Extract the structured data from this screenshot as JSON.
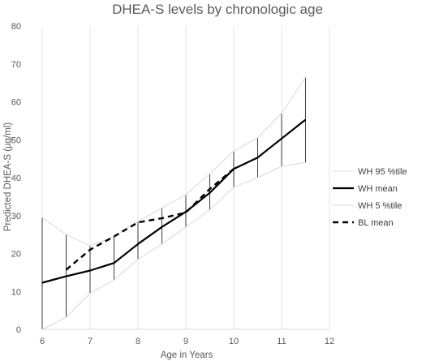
{
  "chart_data": {
    "type": "line",
    "title": "DHEA-S levels by chronologic age",
    "xlabel": "Age in Years",
    "ylabel": "Predicted DHEA-S (µg/ml)",
    "xlim": [
      6,
      12
    ],
    "ylim": [
      0,
      80
    ],
    "x_ticks": [
      "6",
      "7",
      "8",
      "9",
      "10",
      "11",
      "12"
    ],
    "y_ticks": [
      "0",
      "10",
      "20",
      "30",
      "40",
      "50",
      "60",
      "70",
      "80"
    ],
    "grid": "vertical",
    "legend_position": "right",
    "series": [
      {
        "name": "WH 95 %tile",
        "style": "thin-light",
        "color": "#d9d9d9",
        "x": [
          6,
          6.5,
          7,
          7.5,
          8,
          8.5,
          9,
          9.5,
          10,
          10.5,
          11,
          11.5
        ],
        "y": [
          29.5,
          25,
          22,
          24.5,
          28.5,
          32,
          35.5,
          41,
          47,
          50.5,
          57,
          66.5
        ]
      },
      {
        "name": "WH mean",
        "style": "solid-bold",
        "color": "#000000",
        "x": [
          6,
          6.5,
          7,
          7.5,
          8,
          8.5,
          9,
          9.5,
          10,
          10.5,
          11,
          11.5
        ],
        "y": [
          12.3,
          14,
          15.5,
          17.5,
          22.5,
          27,
          31,
          36,
          42.3,
          45.3,
          50.3,
          55.3
        ]
      },
      {
        "name": "WH 5 %tile",
        "style": "thin-light",
        "color": "#d9d9d9",
        "x": [
          6,
          6.5,
          7,
          7.5,
          8,
          8.5,
          9,
          9.5,
          10,
          10.5,
          11,
          11.5
        ],
        "y": [
          0,
          3.2,
          9.5,
          13,
          18.5,
          22.5,
          27,
          31.5,
          37.5,
          40,
          43,
          44
        ]
      },
      {
        "name": "BL mean",
        "style": "dashed-bold",
        "color": "#000000",
        "x": [
          6.5,
          7,
          7.5,
          8,
          8.5,
          9,
          9.5,
          10
        ],
        "y": [
          15.7,
          21,
          24.5,
          28.2,
          29.3,
          30.8,
          37,
          42.3
        ]
      }
    ],
    "error_bars": {
      "x": [
        6,
        6.5,
        7,
        7.5,
        8,
        8.5,
        9,
        9.5,
        10,
        10.5,
        11,
        11.5
      ],
      "low": [
        0,
        3.2,
        9.5,
        13,
        18.5,
        22.5,
        27,
        31.5,
        37.5,
        40,
        43,
        44
      ],
      "high": [
        29.5,
        25,
        22,
        24.5,
        28.5,
        32,
        35.5,
        41,
        47,
        50.5,
        57,
        66.5
      ]
    }
  }
}
